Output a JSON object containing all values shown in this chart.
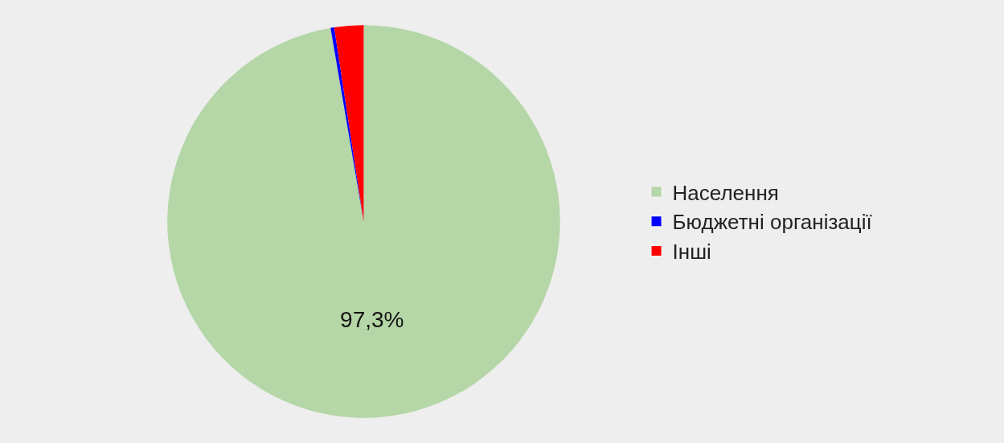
{
  "chart_data": {
    "type": "pie",
    "categories": [
      "Населення",
      "Бюджетні організації",
      "Інші"
    ],
    "values": [
      97.3,
      0.3,
      2.4
    ],
    "colors": [
      "#b5d6a7",
      "#0000ff",
      "#ff0000"
    ],
    "value_labels": [
      "97,3%",
      null,
      null
    ],
    "legend": "right"
  }
}
